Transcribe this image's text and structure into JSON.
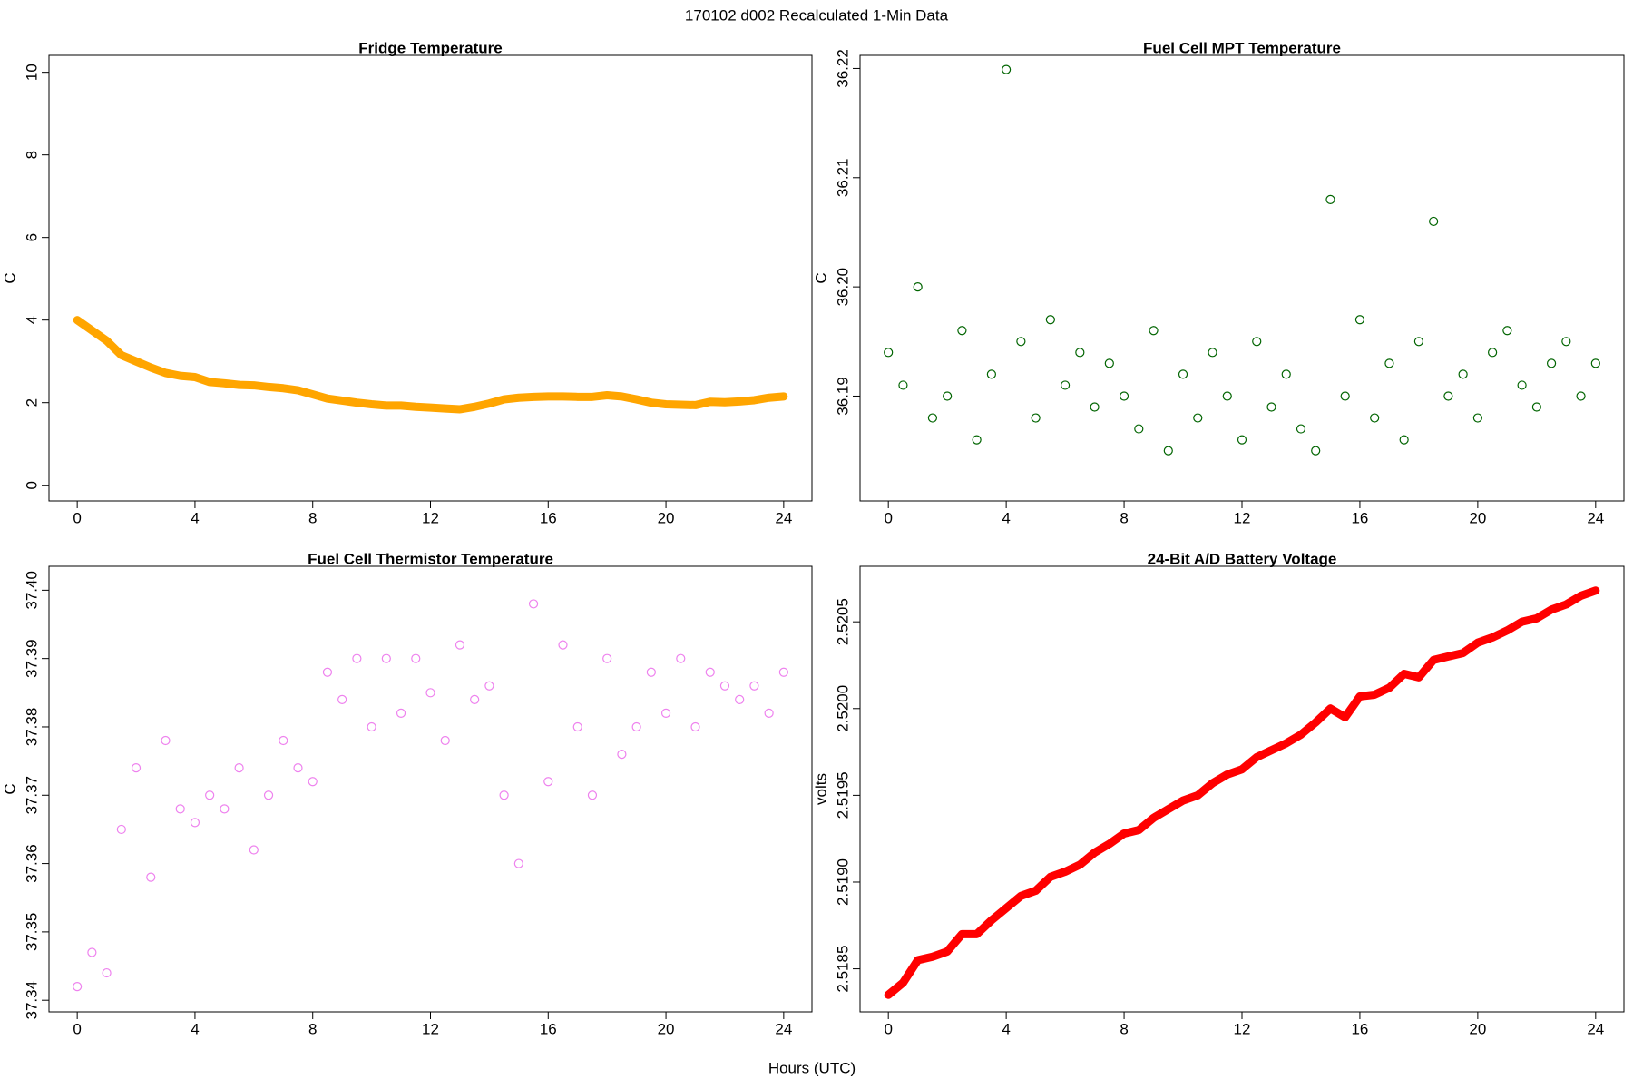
{
  "title": "170102   d002   Recalculated 1-Min Data",
  "xlabel": "Hours (UTC)",
  "chart_data": [
    {
      "type": "line",
      "title": "Fridge Temperature",
      "ylabel": "C",
      "color": "#ffa500",
      "x": [
        0,
        0.5,
        1,
        1.5,
        2,
        2.5,
        3,
        3.5,
        4,
        4.5,
        5,
        5.5,
        6,
        6.5,
        7,
        7.5,
        8,
        8.5,
        9,
        9.5,
        10,
        10.5,
        11,
        11.5,
        12,
        12.5,
        13,
        13.5,
        14,
        14.5,
        15,
        15.5,
        16,
        16.5,
        17,
        17.5,
        18,
        18.5,
        19,
        19.5,
        20,
        20.5,
        21,
        21.5,
        22,
        22.5,
        23,
        23.5,
        24
      ],
      "values": [
        4.0,
        3.75,
        3.5,
        3.15,
        3.0,
        2.85,
        2.72,
        2.65,
        2.62,
        2.5,
        2.47,
        2.43,
        2.42,
        2.38,
        2.35,
        2.3,
        2.2,
        2.1,
        2.05,
        2.0,
        1.96,
        1.93,
        1.93,
        1.9,
        1.88,
        1.86,
        1.84,
        1.9,
        1.98,
        2.08,
        2.12,
        2.14,
        2.15,
        2.15,
        2.14,
        2.14,
        2.18,
        2.15,
        2.08,
        2.0,
        1.96,
        1.95,
        1.94,
        2.02,
        2.01,
        2.03,
        2.06,
        2.12,
        2.15
      ],
      "xlim": [
        -0.96,
        24.96
      ],
      "ylim": [
        -0.38,
        10.41
      ],
      "xticks": [
        0,
        4,
        8,
        12,
        16,
        20,
        24
      ],
      "yticks": [
        0,
        2,
        4,
        6,
        8,
        10
      ]
    },
    {
      "type": "scatter",
      "title": "Fuel Cell MPT Temperature",
      "ylabel": "C",
      "color": "#006400",
      "x": [
        0,
        0.5,
        1,
        1.5,
        2,
        2.5,
        3,
        3.5,
        4,
        4.5,
        5,
        5.5,
        6,
        6.5,
        7,
        7.5,
        8,
        8.5,
        9,
        9.5,
        10,
        10.5,
        11,
        11.5,
        12,
        12.5,
        13,
        13.5,
        14,
        14.5,
        15,
        15.5,
        16,
        16.5,
        17,
        17.5,
        18,
        18.5,
        19,
        19.5,
        20,
        20.5,
        21,
        21.5,
        22,
        22.5,
        23,
        23.5,
        24
      ],
      "values": [
        36.194,
        36.191,
        36.2,
        36.188,
        36.19,
        36.196,
        36.186,
        36.192,
        36.2199,
        36.195,
        36.188,
        36.197,
        36.191,
        36.194,
        36.189,
        36.193,
        36.19,
        36.187,
        36.196,
        36.185,
        36.192,
        36.188,
        36.194,
        36.19,
        36.186,
        36.195,
        36.189,
        36.192,
        36.187,
        36.185,
        36.208,
        36.19,
        36.197,
        36.188,
        36.193,
        36.186,
        36.195,
        36.206,
        36.19,
        36.192,
        36.188,
        36.194,
        36.196,
        36.191,
        36.189,
        36.193,
        36.195,
        36.19,
        36.193
      ],
      "xlim": [
        -0.96,
        24.96
      ],
      "ylim": [
        36.1804,
        36.2212
      ],
      "xticks": [
        0,
        4,
        8,
        12,
        16,
        20,
        24
      ],
      "yticks": [
        36.19,
        {
          "value": 36.2,
          "label": "36.20"
        },
        36.21,
        36.22
      ]
    },
    {
      "type": "scatter",
      "title": "Fuel Cell Thermistor Temperature",
      "ylabel": "C",
      "color": "#ee82ee",
      "x": [
        0,
        0.5,
        1,
        1.5,
        2,
        2.5,
        3,
        3.5,
        4,
        4.5,
        5,
        5.5,
        6,
        6.5,
        7,
        7.5,
        8,
        8.5,
        9,
        9.5,
        10,
        10.5,
        11,
        11.5,
        12,
        12.5,
        13,
        13.5,
        14,
        14.5,
        15,
        15.5,
        16,
        16.5,
        17,
        17.5,
        18,
        18.5,
        19,
        19.5,
        20,
        20.5,
        21,
        21.5,
        22,
        22.5,
        23,
        23.5,
        24
      ],
      "values": [
        37.342,
        37.347,
        37.344,
        37.365,
        37.374,
        37.358,
        37.378,
        37.368,
        37.366,
        37.37,
        37.368,
        37.374,
        37.362,
        37.37,
        37.378,
        37.374,
        37.372,
        37.388,
        37.384,
        37.39,
        37.38,
        37.39,
        37.382,
        37.39,
        37.385,
        37.378,
        37.392,
        37.384,
        37.386,
        37.37,
        37.36,
        37.398,
        37.372,
        37.392,
        37.38,
        37.37,
        37.39,
        37.376,
        37.38,
        37.388,
        37.382,
        37.39,
        37.38,
        37.388,
        37.386,
        37.384,
        37.386,
        37.382,
        37.388
      ],
      "xlim": [
        -0.96,
        24.96
      ],
      "ylim": [
        37.3383,
        37.4035
      ],
      "xticks": [
        0,
        4,
        8,
        12,
        16,
        20,
        24
      ],
      "yticks": [
        37.34,
        37.35,
        37.36,
        37.37,
        37.38,
        37.39,
        {
          "value": 37.4,
          "label": "37.40"
        }
      ]
    },
    {
      "type": "line",
      "title": "24-Bit A/D Battery Voltage",
      "ylabel": "volts",
      "color": "#ff0000",
      "x": [
        0,
        0.5,
        1,
        1.5,
        2,
        2.5,
        3,
        3.5,
        4,
        4.5,
        5,
        5.5,
        6,
        6.5,
        7,
        7.5,
        8,
        8.5,
        9,
        9.5,
        10,
        10.5,
        11,
        11.5,
        12,
        12.5,
        13,
        13.5,
        14,
        14.5,
        15,
        15.5,
        16,
        16.5,
        17,
        17.5,
        18,
        18.5,
        19,
        19.5,
        20,
        20.5,
        21,
        21.5,
        22,
        22.5,
        23,
        23.5,
        24
      ],
      "values": [
        2.51835,
        2.51842,
        2.51855,
        2.51857,
        2.5186,
        2.5187,
        2.5187,
        2.51878,
        2.51885,
        2.51892,
        2.51895,
        2.51903,
        2.51906,
        2.5191,
        2.51917,
        2.51922,
        2.51928,
        2.5193,
        2.51937,
        2.51942,
        2.51947,
        2.5195,
        2.51957,
        2.51962,
        2.51965,
        2.51972,
        2.51976,
        2.5198,
        2.51985,
        2.51992,
        2.52,
        2.51995,
        2.52007,
        2.52008,
        2.52012,
        2.5202,
        2.52018,
        2.52028,
        2.5203,
        2.52032,
        2.52038,
        2.52041,
        2.52045,
        2.5205,
        2.52052,
        2.52057,
        2.5206,
        2.52065,
        2.52068
      ],
      "xlim": [
        -0.96,
        24.96
      ],
      "ylim": [
        2.518252,
        2.52082
      ],
      "xticks": [
        0,
        4,
        8,
        12,
        16,
        20,
        24
      ],
      "yticks": [
        2.5185,
        {
          "value": 2.519,
          "label": "2.5190"
        },
        2.5195,
        {
          "value": 2.52,
          "label": "2.5200"
        },
        2.5205
      ]
    }
  ]
}
